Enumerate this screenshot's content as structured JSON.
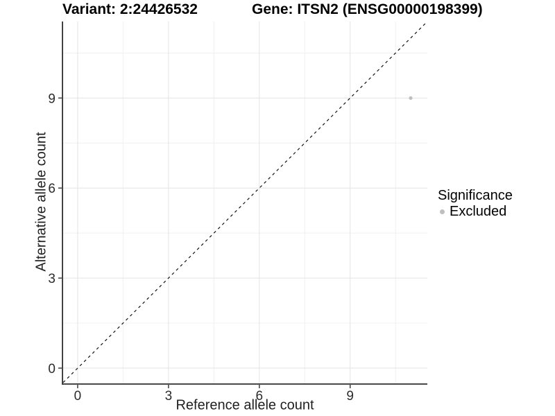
{
  "titles": {
    "variant": "Variant: 2:24426532",
    "gene": "Gene: ITSN2 (ENSG00000198399)"
  },
  "chart_data": {
    "type": "scatter",
    "title": "Variant: 2:24426532   Gene: ITSN2 (ENSG00000198399)",
    "xlabel": "Reference allele count",
    "ylabel": "Alternative allele count",
    "xlim": [
      -0.48,
      11.55
    ],
    "ylim": [
      -0.51,
      11.55
    ],
    "x_ticks": [
      0,
      3,
      6,
      9
    ],
    "y_ticks": [
      0,
      3,
      6,
      9
    ],
    "x_minor_ticks": [
      1.5,
      4.5,
      7.5,
      10.5
    ],
    "y_minor_ticks": [
      1.5,
      4.5,
      7.5,
      10.5
    ],
    "grid": "major and minor gridlines on white background",
    "points": [
      {
        "x": 11,
        "y": 9,
        "series": "Excluded"
      }
    ],
    "reference_line": {
      "slope": 1,
      "intercept": 0,
      "style": "dashed",
      "color": "#111111"
    },
    "legend": {
      "position": "right",
      "title": "Significance",
      "items": [
        {
          "label": "Excluded",
          "color": "#bfbfbf"
        }
      ]
    },
    "colors": {
      "point": "#bfbfbf",
      "grid_major": "#e3e3e3",
      "grid_minor": "#f0f0f0",
      "axis_line": "#2e2e2e",
      "tick_text": "#2b2b2b"
    }
  }
}
